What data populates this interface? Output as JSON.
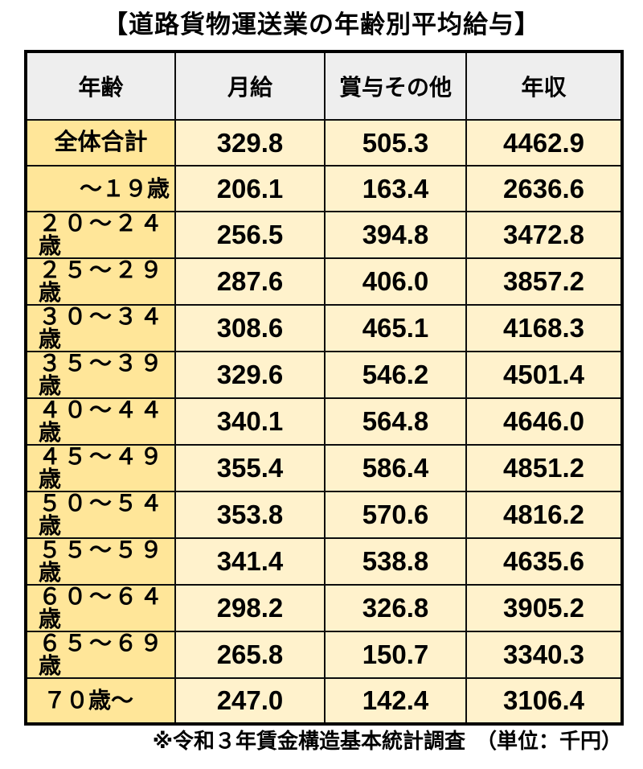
{
  "title": "【道路貨物運送業の年齢別平均給与】",
  "footnote": "※令和３年賃金構造基本統計調査　（単位：千円）",
  "colors": {
    "header_bg": "#eeeeee",
    "age_column_bg": "#ffe699",
    "value_cell_bg": "#fff2cc",
    "border": "#000000",
    "text": "#000000"
  },
  "chart_data": {
    "type": "table",
    "title": "【道路貨物運送業の年齢別平均給与】",
    "unit": "千円",
    "columns": [
      "年齢",
      "月給",
      "賞与その他",
      "年収"
    ],
    "rows": [
      {
        "label": "全体合計",
        "values": [
          329.8,
          505.3,
          4462.9
        ]
      },
      {
        "label": "～１９歳",
        "values": [
          206.1,
          163.4,
          2636.6
        ]
      },
      {
        "label": "２０～２４歳",
        "values": [
          256.5,
          394.8,
          3472.8
        ]
      },
      {
        "label": "２５～２９歳",
        "values": [
          287.6,
          406.0,
          3857.2
        ]
      },
      {
        "label": "３０～３４歳",
        "values": [
          308.6,
          465.1,
          4168.3
        ]
      },
      {
        "label": "３５～３９歳",
        "values": [
          329.6,
          546.2,
          4501.4
        ]
      },
      {
        "label": "４０～４４歳",
        "values": [
          340.1,
          564.8,
          4646.0
        ]
      },
      {
        "label": "４５～４９歳",
        "values": [
          355.4,
          586.4,
          4851.2
        ]
      },
      {
        "label": "５０～５４歳",
        "values": [
          353.8,
          570.6,
          4816.2
        ]
      },
      {
        "label": "５５～５９歳",
        "values": [
          341.4,
          538.8,
          4635.6
        ]
      },
      {
        "label": "６０～６４歳",
        "values": [
          298.2,
          326.8,
          3905.2
        ]
      },
      {
        "label": "６５～６９歳",
        "values": [
          265.8,
          150.7,
          3340.3
        ]
      },
      {
        "label": "７０歳～",
        "values": [
          247.0,
          142.4,
          3106.4
        ]
      }
    ],
    "footnote": "※令和３年賃金構造基本統計調査　（単位：千円）"
  }
}
